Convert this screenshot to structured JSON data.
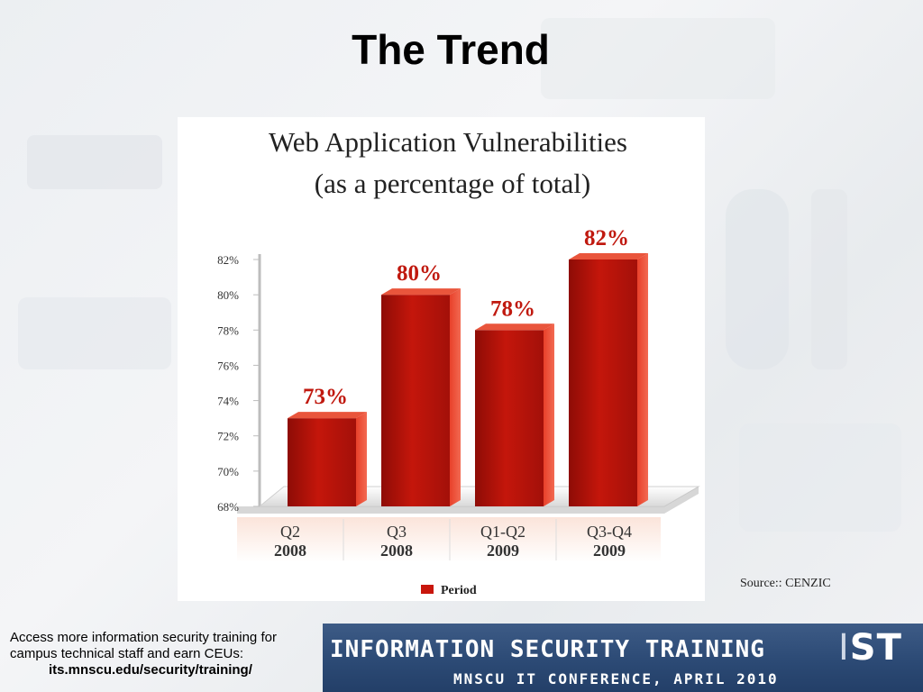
{
  "slide": {
    "title": "The Trend",
    "source": "Source:: CENZIC"
  },
  "footer": {
    "line1": "Access more information security training for",
    "line2": "campus technical staff and earn CEUs:",
    "link": "its.mnscu.edu/security/training/"
  },
  "banner": {
    "title": "INFORMATION SECURITY TRAINING",
    "logo_left": "I",
    "logo_right": "ST",
    "subtitle": "MNSCU IT CONFERENCE, APRIL 2010"
  },
  "chart_data": {
    "type": "bar",
    "title_line1": "Web Application Vulnerabilities",
    "title_line2": "(as a percentage of total)",
    "categories": [
      {
        "line1": "Q2",
        "line2": "2008"
      },
      {
        "line1": "Q3",
        "line2": "2008"
      },
      {
        "line1": "Q1-Q2",
        "line2": "2009"
      },
      {
        "line1": "Q3-Q4",
        "line2": "2009"
      }
    ],
    "values": [
      73,
      80,
      78,
      82
    ],
    "data_labels": [
      "73%",
      "80%",
      "78%",
      "82%"
    ],
    "yticks": [
      68,
      70,
      72,
      74,
      76,
      78,
      80,
      82
    ],
    "ylim": [
      68,
      82
    ],
    "legend": "Period",
    "bar_color": "#c8160c",
    "bar_dark": "#7a0a05",
    "label_color": "#c0190f",
    "grid": false
  }
}
